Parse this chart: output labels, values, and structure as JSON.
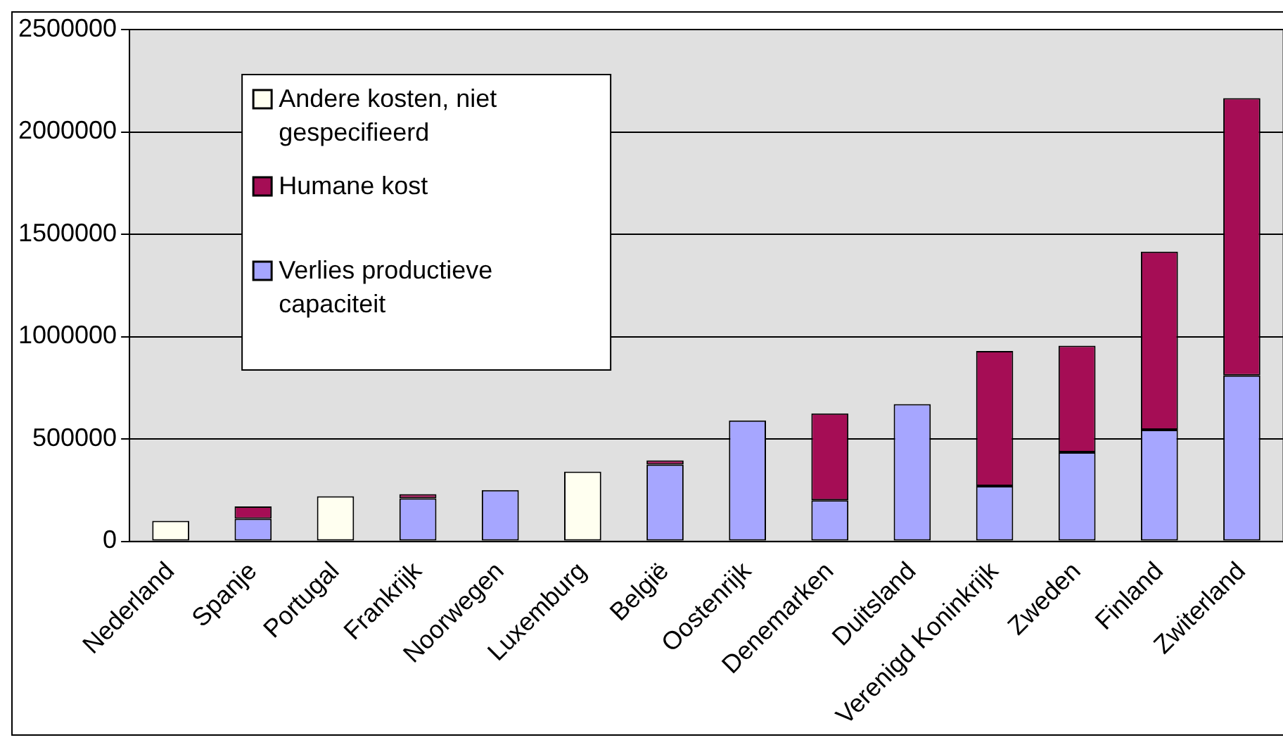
{
  "chart_data": {
    "type": "bar",
    "stacked": true,
    "legend": "top left",
    "grid": "y",
    "categories": [
      "Nederland",
      "Spanje",
      "Portugal",
      "Frankrijk",
      "Noorwegen",
      "Luxemburg",
      "België",
      "Oostenrijk",
      "Denemarken",
      "Duitsland",
      "Verenigd Koninkrijk",
      "Zweden",
      "Finland",
      "Zwiterland"
    ],
    "series": [
      {
        "name": "Verlies productieve capaciteit",
        "color": "#a6a6ff",
        "values": [
          null,
          110000,
          null,
          210000,
          250000,
          null,
          375000,
          590000,
          200000,
          670000,
          270000,
          435000,
          545000,
          810000
        ]
      },
      {
        "name": "Humane kost",
        "color": "#a50d55",
        "values": [
          null,
          60000,
          null,
          20000,
          null,
          null,
          20000,
          null,
          425000,
          null,
          660000,
          520000,
          870000,
          1355000
        ]
      },
      {
        "name": "Andere kosten, niet gespecifieerd",
        "color": "#fffff0",
        "values": [
          100000,
          null,
          220000,
          null,
          null,
          340000,
          null,
          null,
          null,
          null,
          null,
          null,
          null,
          null
        ]
      }
    ],
    "ylim": [
      0,
      2500000
    ],
    "yticks": [
      0,
      500000,
      1000000,
      1500000,
      2000000,
      2500000
    ]
  }
}
